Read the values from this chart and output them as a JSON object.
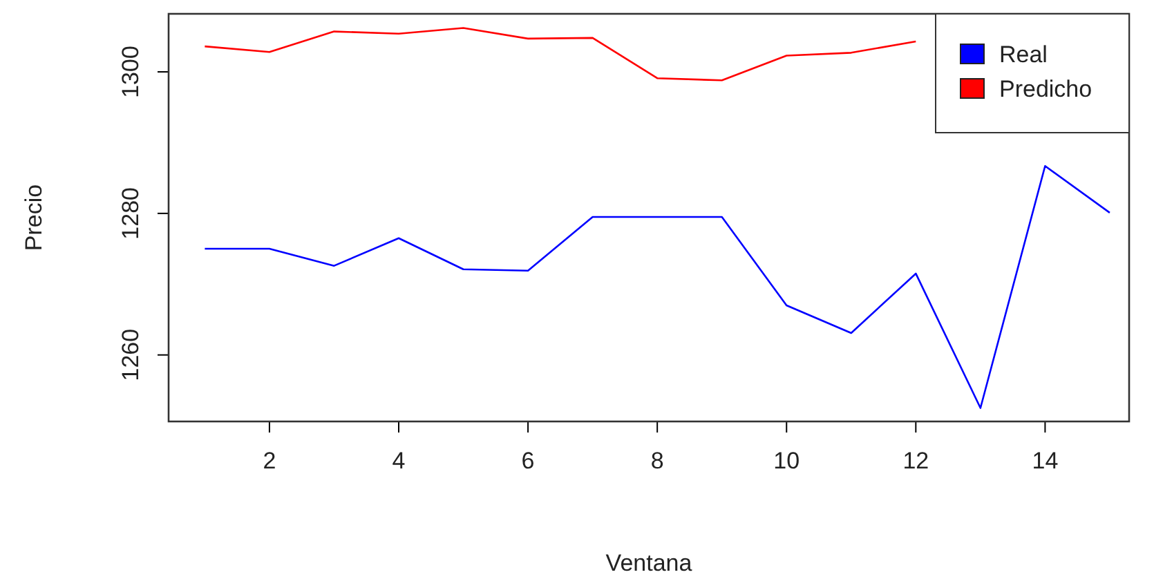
{
  "chart_data": {
    "type": "line",
    "xlabel": "Ventana",
    "ylabel": "Precio",
    "x": [
      1,
      2,
      3,
      4,
      5,
      6,
      7,
      8,
      9,
      10,
      11,
      12,
      13,
      14,
      15
    ],
    "series": [
      {
        "name": "Real",
        "color": "#0000ff",
        "values": [
          1275,
          1275,
          1272.6,
          1276.5,
          1272.1,
          1271.9,
          1279.5,
          1279.5,
          1279.5,
          1267,
          1263.1,
          1271.5,
          1252.5,
          1286.7,
          1280.1
        ]
      },
      {
        "name": "Predicho",
        "color": "#ff0000",
        "values": [
          1303.6,
          1302.8,
          1305.7,
          1305.4,
          1306.2,
          1304.7,
          1304.8,
          1299.1,
          1298.8,
          1302.3,
          1302.7,
          1304.3,
          null,
          null,
          null
        ]
      }
    ],
    "xlim": [
      0.44,
      15.3
    ],
    "ylim": [
      1250.6,
      1308.2
    ],
    "xticks": [
      2,
      4,
      6,
      8,
      10,
      12,
      14
    ],
    "yticks": [
      1260,
      1280,
      1300
    ],
    "legend": "top right",
    "grid": false,
    "marker": "none",
    "line_style": "solid"
  }
}
